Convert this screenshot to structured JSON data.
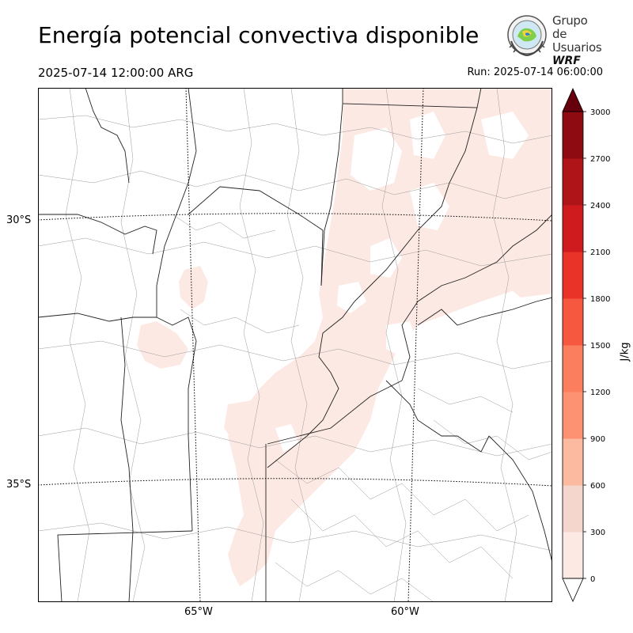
{
  "header": {
    "title": "Energía potencial convectiva disponible",
    "valid_time": "2025-07-14 12:00:00 ARG",
    "run_time": "Run: 2025-07-14 06:00:00"
  },
  "logo": {
    "line1": "Grupo de",
    "line2": "Usuarios",
    "line3": "WRF"
  },
  "map": {
    "lat_labels": [
      "30°S",
      "35°S"
    ],
    "lon_labels": [
      "65°W",
      "60°W"
    ]
  },
  "colorbar": {
    "unit_label": "J/kg",
    "ticks": [
      "0",
      "300",
      "600",
      "900",
      "1200",
      "1500",
      "1800",
      "2100",
      "2400",
      "2700",
      "3000"
    ],
    "colors": [
      "#fde9e3",
      "#f4d6cc",
      "#fcbba1",
      "#fc9272",
      "#fb7e5e",
      "#f6573f",
      "#e93228",
      "#cf1b1e",
      "#af1419",
      "#8e0b12",
      "#67000d"
    ],
    "over_color": "#67000d",
    "under_color": "#ffffff"
  }
}
